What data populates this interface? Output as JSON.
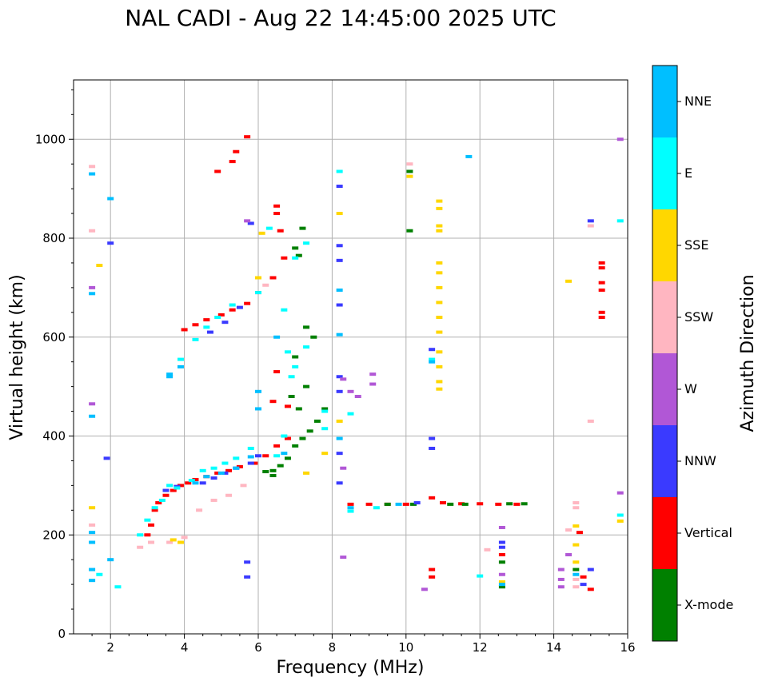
{
  "chart_data": {
    "type": "scatter",
    "title": "NAL CADI - Aug 22 14:45:00 2025 UTC",
    "xlabel": "Frequency (MHz)",
    "ylabel": "Virtual height (km)",
    "xlim": [
      1,
      16
    ],
    "ylim": [
      0,
      1120
    ],
    "xticks": [
      "2",
      "4",
      "6",
      "8",
      "10",
      "12",
      "14",
      "16"
    ],
    "yticks": [
      "0",
      "200",
      "400",
      "600",
      "800",
      "1000"
    ],
    "grid": true,
    "colorbar": {
      "label": "Azimuth Direction",
      "categories": [
        {
          "name": "X-mode",
          "color": "#008000"
        },
        {
          "name": "Vertical",
          "color": "#ff0000"
        },
        {
          "name": "NNW",
          "color": "#3a3aff"
        },
        {
          "name": "W",
          "color": "#b157d6"
        },
        {
          "name": "SSW",
          "color": "#ffb6c1"
        },
        {
          "name": "SSE",
          "color": "#ffd700"
        },
        {
          "name": "E",
          "color": "#00ffff"
        },
        {
          "name": "NNE",
          "color": "#00bfff"
        }
      ]
    },
    "series": [
      {
        "name": "Vertical",
        "color": "#ff0000",
        "points": [
          [
            3.0,
            200
          ],
          [
            3.1,
            220
          ],
          [
            3.2,
            250
          ],
          [
            3.3,
            265
          ],
          [
            3.5,
            280
          ],
          [
            3.7,
            290
          ],
          [
            3.9,
            300
          ],
          [
            4.1,
            305
          ],
          [
            4.3,
            312
          ],
          [
            4.6,
            318
          ],
          [
            4.9,
            325
          ],
          [
            5.2,
            330
          ],
          [
            5.5,
            338
          ],
          [
            5.9,
            345
          ],
          [
            6.2,
            360
          ],
          [
            6.5,
            380
          ],
          [
            6.8,
            395
          ],
          [
            4.0,
            615
          ],
          [
            4.3,
            625
          ],
          [
            4.6,
            635
          ],
          [
            5.0,
            645
          ],
          [
            5.3,
            655
          ],
          [
            5.7,
            668
          ],
          [
            6.0,
            690
          ],
          [
            6.4,
            720
          ],
          [
            6.7,
            760
          ],
          [
            5.7,
            1005
          ],
          [
            5.4,
            975
          ],
          [
            5.3,
            955
          ],
          [
            4.9,
            935
          ],
          [
            6.5,
            865
          ],
          [
            6.5,
            850
          ],
          [
            6.6,
            815
          ],
          [
            8.5,
            262
          ],
          [
            9.0,
            262
          ],
          [
            9.5,
            262
          ],
          [
            10.0,
            262
          ],
          [
            10.7,
            275
          ],
          [
            11.0,
            265
          ],
          [
            11.5,
            263
          ],
          [
            12.0,
            263
          ],
          [
            12.5,
            262
          ],
          [
            13.0,
            262
          ],
          [
            15.3,
            750
          ],
          [
            15.3,
            740
          ],
          [
            15.3,
            710
          ],
          [
            15.3,
            695
          ],
          [
            15.3,
            650
          ],
          [
            15.3,
            640
          ],
          [
            14.7,
            205
          ],
          [
            14.8,
            115
          ],
          [
            15.0,
            90
          ],
          [
            10.7,
            130
          ],
          [
            10.7,
            115
          ],
          [
            12.6,
            160
          ],
          [
            6.4,
            470
          ],
          [
            6.5,
            530
          ],
          [
            6.8,
            460
          ]
        ]
      },
      {
        "name": "X-mode",
        "color": "#008000",
        "points": [
          [
            6.4,
            320
          ],
          [
            6.6,
            340
          ],
          [
            6.8,
            355
          ],
          [
            7.0,
            380
          ],
          [
            7.2,
            395
          ],
          [
            7.4,
            410
          ],
          [
            7.6,
            430
          ],
          [
            7.8,
            455
          ],
          [
            7.0,
            560
          ],
          [
            7.3,
            620
          ],
          [
            7.5,
            600
          ],
          [
            6.9,
            480
          ],
          [
            7.1,
            455
          ],
          [
            7.3,
            500
          ],
          [
            7.0,
            780
          ],
          [
            7.1,
            765
          ],
          [
            7.2,
            820
          ],
          [
            10.1,
            815
          ],
          [
            10.1,
            935
          ],
          [
            11.2,
            262
          ],
          [
            11.6,
            262
          ],
          [
            12.8,
            263
          ],
          [
            13.2,
            263
          ],
          [
            9.5,
            262
          ],
          [
            10.2,
            262
          ],
          [
            12.6,
            145
          ],
          [
            12.6,
            95
          ],
          [
            14.6,
            130
          ],
          [
            6.4,
            330
          ],
          [
            6.2,
            328
          ]
        ]
      },
      {
        "name": "NNW",
        "color": "#3a3aff",
        "points": [
          [
            4.5,
            305
          ],
          [
            4.8,
            315
          ],
          [
            5.1,
            325
          ],
          [
            5.4,
            335
          ],
          [
            5.8,
            345
          ],
          [
            6.0,
            360
          ],
          [
            3.5,
            290
          ],
          [
            3.8,
            298
          ],
          [
            4.7,
            610
          ],
          [
            5.1,
            630
          ],
          [
            5.5,
            660
          ],
          [
            2.0,
            790
          ],
          [
            1.9,
            355
          ],
          [
            5.8,
            830
          ],
          [
            8.2,
            905
          ],
          [
            8.2,
            785
          ],
          [
            8.2,
            755
          ],
          [
            8.2,
            665
          ],
          [
            8.2,
            520
          ],
          [
            8.2,
            490
          ],
          [
            8.2,
            365
          ],
          [
            8.2,
            305
          ],
          [
            10.7,
            575
          ],
          [
            10.7,
            395
          ],
          [
            10.7,
            375
          ],
          [
            10.3,
            265
          ],
          [
            15.0,
            835
          ],
          [
            12.6,
            185
          ],
          [
            12.6,
            175
          ],
          [
            15.0,
            130
          ],
          [
            14.8,
            100
          ],
          [
            5.7,
            145
          ],
          [
            5.7,
            115
          ]
        ]
      },
      {
        "name": "W",
        "color": "#b157d6",
        "points": [
          [
            1.5,
            700
          ],
          [
            1.5,
            465
          ],
          [
            8.3,
            515
          ],
          [
            8.3,
            335
          ],
          [
            8.3,
            155
          ],
          [
            8.5,
            490
          ],
          [
            8.7,
            480
          ],
          [
            9.1,
            525
          ],
          [
            9.1,
            505
          ],
          [
            12.6,
            215
          ],
          [
            12.6,
            120
          ],
          [
            14.2,
            130
          ],
          [
            14.2,
            110
          ],
          [
            14.2,
            95
          ],
          [
            14.4,
            160
          ],
          [
            15.8,
            1000
          ],
          [
            15.8,
            285
          ],
          [
            10.5,
            90
          ],
          [
            5.7,
            835
          ]
        ]
      },
      {
        "name": "SSW",
        "color": "#ffb6c1",
        "points": [
          [
            1.5,
            945
          ],
          [
            1.5,
            815
          ],
          [
            1.5,
            220
          ],
          [
            2.8,
            175
          ],
          [
            3.6,
            185
          ],
          [
            4.0,
            195
          ],
          [
            4.4,
            250
          ],
          [
            4.8,
            270
          ],
          [
            5.2,
            280
          ],
          [
            5.6,
            300
          ],
          [
            10.1,
            950
          ],
          [
            15.0,
            825
          ],
          [
            15.0,
            430
          ],
          [
            12.2,
            170
          ],
          [
            14.6,
            265
          ],
          [
            14.6,
            255
          ],
          [
            14.6,
            110
          ],
          [
            14.6,
            95
          ],
          [
            14.4,
            210
          ],
          [
            6.2,
            705
          ],
          [
            3.1,
            185
          ]
        ]
      },
      {
        "name": "SSE",
        "color": "#ffd700",
        "points": [
          [
            10.9,
            875
          ],
          [
            10.9,
            860
          ],
          [
            10.9,
            825
          ],
          [
            10.9,
            815
          ],
          [
            10.9,
            750
          ],
          [
            10.9,
            730
          ],
          [
            10.9,
            700
          ],
          [
            10.9,
            670
          ],
          [
            10.9,
            640
          ],
          [
            10.9,
            610
          ],
          [
            10.9,
            570
          ],
          [
            10.9,
            540
          ],
          [
            10.9,
            510
          ],
          [
            10.9,
            495
          ],
          [
            1.7,
            745
          ],
          [
            8.2,
            850
          ],
          [
            8.2,
            430
          ],
          [
            6.1,
            810
          ],
          [
            6.0,
            720
          ],
          [
            3.7,
            190
          ],
          [
            3.9,
            185
          ],
          [
            14.4,
            713
          ],
          [
            14.6,
            218
          ],
          [
            14.6,
            180
          ],
          [
            14.6,
            145
          ],
          [
            15.8,
            228
          ],
          [
            10.1,
            925
          ],
          [
            7.3,
            325
          ],
          [
            7.8,
            365
          ],
          [
            12.6,
            105
          ],
          [
            1.5,
            255
          ]
        ]
      },
      {
        "name": "E",
        "color": "#00ffff",
        "points": [
          [
            2.8,
            200
          ],
          [
            3.0,
            230
          ],
          [
            3.2,
            255
          ],
          [
            3.4,
            270
          ],
          [
            3.6,
            300
          ],
          [
            3.8,
            295
          ],
          [
            4.2,
            310
          ],
          [
            4.5,
            330
          ],
          [
            4.8,
            335
          ],
          [
            5.1,
            345
          ],
          [
            5.4,
            355
          ],
          [
            5.8,
            375
          ],
          [
            3.9,
            555
          ],
          [
            4.3,
            595
          ],
          [
            4.6,
            620
          ],
          [
            4.9,
            640
          ],
          [
            5.3,
            665
          ],
          [
            6.0,
            690
          ],
          [
            6.7,
            655
          ],
          [
            7.0,
            760
          ],
          [
            7.3,
            790
          ],
          [
            6.8,
            570
          ],
          [
            6.9,
            520
          ],
          [
            7.0,
            540
          ],
          [
            7.3,
            580
          ],
          [
            7.8,
            450
          ],
          [
            7.8,
            415
          ],
          [
            6.7,
            400
          ],
          [
            6.5,
            360
          ],
          [
            2.2,
            95
          ],
          [
            1.7,
            120
          ],
          [
            8.2,
            935
          ],
          [
            8.5,
            445
          ],
          [
            8.5,
            248
          ],
          [
            9.2,
            255
          ],
          [
            10.7,
            555
          ],
          [
            12.0,
            117
          ],
          [
            15.8,
            835
          ],
          [
            15.8,
            240
          ],
          [
            6.3,
            820
          ]
        ]
      },
      {
        "name": "NNE",
        "color": "#00bfff",
        "points": [
          [
            1.5,
            930
          ],
          [
            1.5,
            688
          ],
          [
            1.5,
            440
          ],
          [
            1.5,
            205
          ],
          [
            1.5,
            185
          ],
          [
            1.5,
            130
          ],
          [
            1.5,
            108
          ],
          [
            3.6,
            525
          ],
          [
            3.6,
            520
          ],
          [
            3.9,
            540
          ],
          [
            4.3,
            305
          ],
          [
            4.6,
            318
          ],
          [
            5.0,
            325
          ],
          [
            5.4,
            335
          ],
          [
            5.8,
            358
          ],
          [
            6.0,
            490
          ],
          [
            6.0,
            455
          ],
          [
            6.7,
            365
          ],
          [
            6.5,
            600
          ],
          [
            8.2,
            605
          ],
          [
            8.2,
            695
          ],
          [
            8.2,
            395
          ],
          [
            8.5,
            255
          ],
          [
            10.7,
            550
          ],
          [
            11.7,
            965
          ],
          [
            9.8,
            262
          ],
          [
            12.6,
            100
          ],
          [
            14.6,
            120
          ],
          [
            2.0,
            880
          ],
          [
            2.0,
            150
          ]
        ]
      }
    ]
  }
}
